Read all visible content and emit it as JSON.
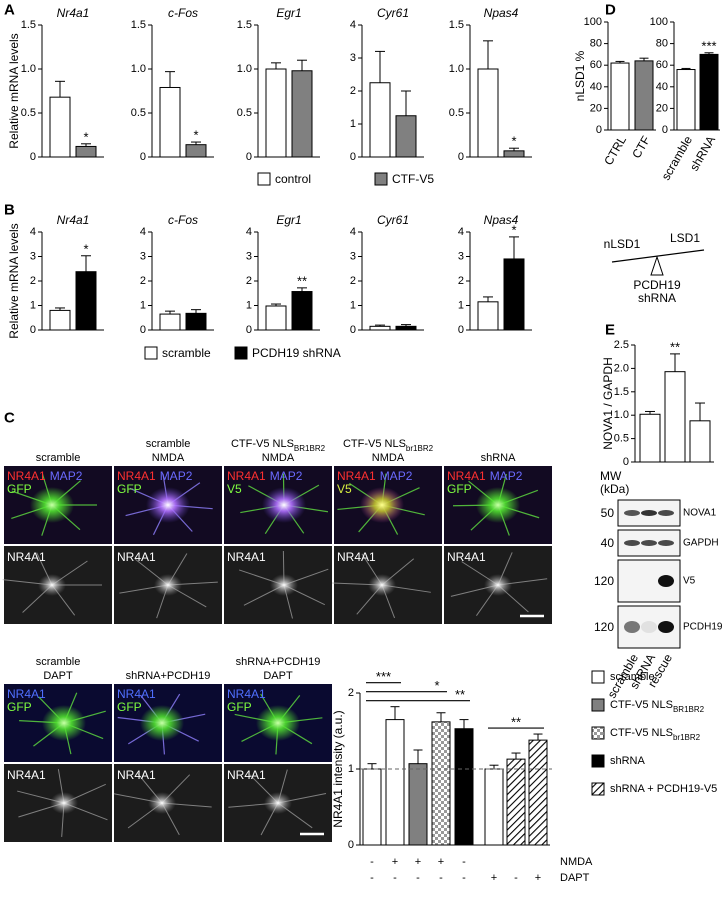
{
  "chart_data": [
    {
      "type": "bar",
      "title": "Nr4a1",
      "ylabel": "Relative mRNA levels",
      "ylim": [
        0,
        1.5
      ],
      "yticks": [
        0,
        0.5,
        {
          "value": 1,
          "label": "1.0"
        },
        1.5
      ],
      "values": [
        0.68,
        0.12
      ],
      "errors": [
        0.18,
        0.03
      ],
      "colors": [
        "#ffffff",
        "#808080"
      ],
      "annotations": [
        null,
        "*"
      ]
    },
    {
      "type": "bar",
      "title": "c-Fos",
      "ylim": [
        0,
        1.5
      ],
      "yticks": [
        0,
        0.5,
        {
          "value": 1,
          "label": "1.0"
        },
        1.5
      ],
      "values": [
        0.79,
        0.14
      ],
      "errors": [
        0.18,
        0.03
      ],
      "colors": [
        "#ffffff",
        "#808080"
      ],
      "annotations": [
        null,
        "*"
      ]
    },
    {
      "type": "bar",
      "title": "Egr1",
      "ylim": [
        0,
        1.5
      ],
      "yticks": [
        0,
        0.5,
        {
          "value": 1,
          "label": "1.0"
        },
        1.5
      ],
      "values": [
        1.0,
        0.98
      ],
      "errors": [
        0.07,
        0.12
      ],
      "colors": [
        "#ffffff",
        "#808080"
      ]
    },
    {
      "type": "bar",
      "title": "Cyr61",
      "ylim": [
        0,
        4
      ],
      "yticks": [
        0,
        1,
        2,
        3,
        4
      ],
      "values": [
        2.25,
        1.25
      ],
      "errors": [
        0.95,
        0.75
      ],
      "colors": [
        "#ffffff",
        "#808080"
      ]
    },
    {
      "type": "bar",
      "title": "Npas4",
      "ylim": [
        0,
        1.5
      ],
      "yticks": [
        0,
        0.5,
        {
          "value": 1,
          "label": "1.0"
        },
        1.5
      ],
      "values": [
        1.0,
        0.07
      ],
      "errors": [
        0.32,
        0.03
      ],
      "colors": [
        "#ffffff",
        "#808080"
      ],
      "annotations": [
        null,
        "*"
      ]
    },
    {
      "type": "bar",
      "title": "Nr4a1",
      "ylabel": "Relative mRNA levels",
      "ylim": [
        0,
        4
      ],
      "yticks": [
        0,
        1,
        2,
        3,
        4
      ],
      "values": [
        0.8,
        2.38
      ],
      "errors": [
        0.1,
        0.65
      ],
      "colors": [
        "#ffffff",
        "#000000"
      ],
      "annotations": [
        null,
        "*"
      ]
    },
    {
      "type": "bar",
      "title": "c-Fos",
      "ylim": [
        0,
        4
      ],
      "yticks": [
        0,
        1,
        2,
        3,
        4
      ],
      "values": [
        0.65,
        0.68
      ],
      "errors": [
        0.12,
        0.15
      ],
      "colors": [
        "#ffffff",
        "#000000"
      ]
    },
    {
      "type": "bar",
      "title": "Egr1",
      "ylim": [
        0,
        4
      ],
      "yticks": [
        0,
        1,
        2,
        3,
        4
      ],
      "values": [
        0.98,
        1.57
      ],
      "errors": [
        0.08,
        0.15
      ],
      "colors": [
        "#ffffff",
        "#000000"
      ],
      "annotations": [
        null,
        "**"
      ]
    },
    {
      "type": "bar",
      "title": "Cyr61",
      "ylim": [
        0,
        4
      ],
      "yticks": [
        0,
        1,
        2,
        3,
        4
      ],
      "values": [
        0.15,
        0.15
      ],
      "errors": [
        0.05,
        0.07
      ],
      "colors": [
        "#ffffff",
        "#000000"
      ]
    },
    {
      "type": "bar",
      "title": "Npas4",
      "ylim": [
        0,
        4
      ],
      "yticks": [
        0,
        1,
        2,
        3,
        4
      ],
      "values": [
        1.15,
        2.9
      ],
      "errors": [
        0.2,
        0.9
      ],
      "colors": [
        "#ffffff",
        "#000000"
      ],
      "annotations": [
        null,
        "*"
      ]
    },
    {
      "type": "bar",
      "ylabel": "nLSD1 %",
      "categories": [
        "CTRL",
        "CTF"
      ],
      "ylim": [
        0,
        100
      ],
      "yticks": [
        0,
        20,
        40,
        60,
        80,
        100
      ],
      "values": [
        62,
        64
      ],
      "errors": [
        1.5,
        2.5
      ],
      "colors": [
        "#ffffff",
        "#808080"
      ]
    },
    {
      "type": "bar",
      "categories": [
        "scramble",
        "shRNA"
      ],
      "ylim": [
        0,
        100
      ],
      "yticks": [
        0,
        20,
        40,
        60,
        80,
        100
      ],
      "values": [
        56,
        70
      ],
      "errors": [
        1,
        1.5
      ],
      "colors": [
        "#ffffff",
        "#000000"
      ],
      "annotations": [
        null,
        "***"
      ]
    },
    {
      "type": "bar",
      "ylabel": "NOVA1 / GAPDH",
      "categories": [
        "scramble",
        "shRNA",
        "rescue"
      ],
      "ylim": [
        0,
        2.5
      ],
      "yticks": [
        0,
        0.5,
        {
          "value": 1,
          "label": "1.0"
        },
        1.5,
        {
          "value": 2,
          "label": "2.0"
        },
        2.5
      ],
      "values": [
        1.02,
        1.93,
        0.88
      ],
      "errors": [
        0.06,
        0.38,
        0.38
      ],
      "colors": [
        "#ffffff",
        "#ffffff",
        "#ffffff"
      ],
      "annotations": [
        null,
        "**",
        null
      ]
    },
    {
      "type": "bar",
      "ylabel": "NR4A1 intensity (a.u.)",
      "ylim": [
        0,
        2
      ],
      "yticks": [
        0,
        1,
        2
      ],
      "reference_line": 1,
      "values": [
        1.0,
        1.65,
        1.07,
        1.62,
        1.53,
        1.0,
        1.13,
        1.38
      ],
      "errors": [
        0.07,
        0.17,
        0.18,
        0.12,
        0.12,
        0.05,
        0.08,
        0.08
      ],
      "fills": [
        "white",
        "white",
        "gray",
        "checker",
        "black",
        "white",
        "hatch",
        "hatch"
      ],
      "significance": [
        {
          "bars": [
            0,
            1
          ],
          "label": "***"
        },
        {
          "bars": [
            0,
            3
          ],
          "label": "*"
        },
        {
          "bars": [
            0,
            4
          ],
          "label": "**"
        },
        {
          "bars": [
            5,
            7
          ],
          "label": "**"
        }
      ],
      "conditions": [
        {
          "name": "NMDA",
          "marks": [
            "-",
            "+",
            "+",
            "+",
            "-",
            null,
            null,
            null
          ]
        },
        {
          "name": "DAPT",
          "marks": [
            "-",
            "-",
            "-",
            "-",
            "-",
            "+",
            "-",
            "+"
          ]
        }
      ],
      "legend": [
        {
          "name": "scramble",
          "fill": "white"
        },
        {
          "name": "CTF-V5 NLS",
          "sub": "BR1BR2",
          "fill": "gray"
        },
        {
          "name": "CTF-V5 NLS",
          "sub": "br1BR2",
          "fill": "checker"
        },
        {
          "name": "shRNA",
          "fill": "black"
        },
        {
          "name": "shRNA + PCDH19-V5",
          "fill": "hatch"
        }
      ]
    }
  ],
  "panel_labels": [
    "A",
    "B",
    "C",
    "D",
    "E"
  ],
  "legend_a": [
    {
      "name": "control",
      "color": "#ffffff"
    },
    {
      "name": "CTF-V5",
      "color": "#808080"
    }
  ],
  "legend_b": [
    {
      "name": "scramble",
      "color": "#ffffff"
    },
    {
      "name": "PCDH19 shRNA",
      "color": "#000000"
    }
  ],
  "seesaw": {
    "left": "nLSD1",
    "right": "LSD1",
    "fulcrum": [
      "PCDH19",
      "shRNA"
    ]
  },
  "blot": {
    "mw_label": [
      "MW",
      "(kDa)"
    ],
    "rows": [
      {
        "mw": 50,
        "name": "NOVA1"
      },
      {
        "mw": 40,
        "name": "GAPDH"
      },
      {
        "mw": 120,
        "name": "V5"
      },
      {
        "mw": 120,
        "name": "PCDH19"
      }
    ]
  },
  "micrographs": [
    {
      "title": [
        {
          "text": "scramble"
        }
      ],
      "channels": [
        [
          {
            "text": "NR4A1",
            "color": "#ff3030"
          },
          {
            "text": "MAP2",
            "color": "#6a6aff"
          }
        ],
        [
          {
            "text": "GFP",
            "color": "#80ff40"
          }
        ]
      ],
      "gray": "NR4A1"
    },
    {
      "title": [
        {
          "text": "scramble"
        },
        {
          "text": "NMDA"
        }
      ],
      "channels": [
        [
          {
            "text": "NR4A1",
            "color": "#ff3030"
          },
          {
            "text": "MAP2",
            "color": "#6a6aff"
          }
        ],
        [
          {
            "text": "GFP",
            "color": "#80ff40"
          }
        ]
      ],
      "gray": "NR4A1"
    },
    {
      "title": [
        {
          "text": "CTF-V5 NLS",
          "sub": "BR1BR2"
        },
        {
          "text": "NMDA"
        }
      ],
      "channels": [
        [
          {
            "text": "NR4A1",
            "color": "#ff3030"
          },
          {
            "text": "MAP2",
            "color": "#6a6aff"
          }
        ],
        [
          {
            "text": "V5",
            "color": "#80ff40"
          }
        ]
      ],
      "gray": "NR4A1"
    },
    {
      "title": [
        {
          "text": "CTF-V5 NLS",
          "sub": "br1BR2"
        },
        {
          "text": "NMDA"
        }
      ],
      "channels": [
        [
          {
            "text": "NR4A1",
            "color": "#ff3030"
          },
          {
            "text": "MAP2",
            "color": "#6a6aff"
          }
        ],
        [
          {
            "text": "V5",
            "color": "#d8ee40"
          }
        ]
      ],
      "gray": "NR4A1"
    },
    {
      "title": [
        {
          "text": "shRNA"
        }
      ],
      "channels": [
        [
          {
            "text": "NR4A1",
            "color": "#ff3030"
          },
          {
            "text": "MAP2",
            "color": "#6a6aff"
          }
        ],
        [
          {
            "text": "GFP",
            "color": "#80ff40"
          }
        ]
      ],
      "gray": "NR4A1"
    },
    {
      "title": [
        {
          "text": "scramble"
        },
        {
          "text": "DAPT"
        }
      ],
      "channels": [
        [
          {
            "text": "NR4A1",
            "color": "#5070ff"
          }
        ],
        [
          {
            "text": "GFP",
            "color": "#80ff40"
          }
        ]
      ],
      "gray": "NR4A1"
    },
    {
      "title": [
        {
          "text": "shRNA+PCDH19"
        }
      ],
      "channels": [
        [
          {
            "text": "NR4A1",
            "color": "#5070ff"
          }
        ],
        [
          {
            "text": "GFP",
            "color": "#80ff40"
          }
        ]
      ],
      "gray": "NR4A1"
    },
    {
      "title": [
        {
          "text": "shRNA+PCDH19"
        },
        {
          "text": "DAPT"
        }
      ],
      "channels": [
        [
          {
            "text": "NR4A1",
            "color": "#5070ff"
          }
        ],
        [
          {
            "text": "GFP",
            "color": "#80ff40"
          }
        ]
      ],
      "gray": "NR4A1"
    }
  ]
}
